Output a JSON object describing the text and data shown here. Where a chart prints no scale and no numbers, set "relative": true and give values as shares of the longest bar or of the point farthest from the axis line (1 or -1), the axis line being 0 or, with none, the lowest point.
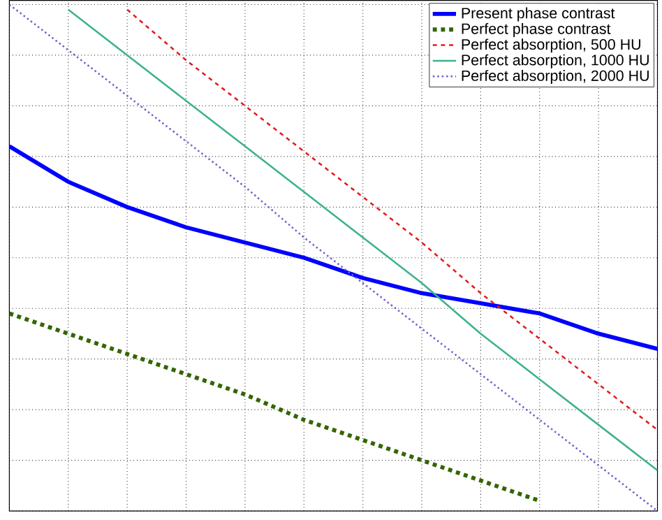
{
  "chart_data": {
    "type": "line",
    "relative": true,
    "grid": true,
    "legend": "top right",
    "marker": "none",
    "categories": [
      null,
      null,
      null,
      null,
      null,
      null,
      null,
      null,
      null,
      null,
      null,
      null
    ],
    "series": [
      {
        "name": "Present phase contrast",
        "color": "#0000ff",
        "line_style": "solid",
        "values": [
          0.72,
          0.65,
          0.6,
          0.56,
          0.53,
          0.5,
          0.46,
          0.43,
          0.41,
          0.39,
          0.35,
          0.32
        ]
      },
      {
        "name": "Perfect phase contrast",
        "color": "#336600",
        "line_style": "dashed",
        "values": [
          0.39,
          0.35,
          0.31,
          0.27,
          0.23,
          0.18,
          0.14,
          0.1,
          0.06,
          0.02,
          null,
          null
        ]
      },
      {
        "name": "Perfect absorption, 500 HU",
        "color": "#e31a1c",
        "line_style": "dashed",
        "values": [
          null,
          null,
          0.99,
          0.89,
          0.8,
          0.71,
          0.62,
          0.53,
          0.43,
          0.34,
          0.25,
          0.16
        ]
      },
      {
        "name": "Perfect absorption, 1000 HU",
        "color": "#3cb38a",
        "line_style": "solid",
        "values": [
          null,
          0.99,
          0.9,
          0.81,
          0.72,
          0.63,
          0.54,
          0.45,
          0.35,
          0.26,
          0.17,
          0.08
        ]
      },
      {
        "name": "Perfect absorption, 2000 HU",
        "color": "#7a5ccc",
        "line_style": "dotted",
        "values": [
          1.0,
          0.91,
          0.82,
          0.73,
          0.64,
          0.54,
          0.45,
          0.36,
          0.27,
          0.18,
          0.09,
          0.0
        ]
      }
    ]
  }
}
